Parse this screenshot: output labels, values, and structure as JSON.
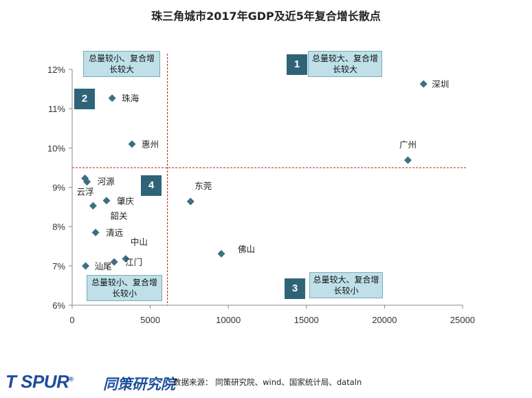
{
  "chart_data": {
    "type": "scatter",
    "title": "珠三角城市2017年GDP及近5年复合增长散点",
    "xlim": [
      0,
      25000
    ],
    "ylim": [
      0.06,
      0.12
    ],
    "xticks": [
      "0",
      "5000",
      "10000",
      "15000",
      "20000",
      "25000"
    ],
    "xtick_values": [
      0,
      5000,
      10000,
      15000,
      20000,
      25000
    ],
    "yticks": [
      "6%",
      "7%",
      "8%",
      "9%",
      "10%",
      "11%",
      "12%"
    ],
    "ytick_values": [
      0.06,
      0.07,
      0.08,
      0.09,
      0.1,
      0.11,
      0.12
    ],
    "marker_color": "#3f6f80",
    "points": [
      {
        "label": "深圳",
        "x": 22500,
        "y": 0.1163
      },
      {
        "label": "广州",
        "x": 21500,
        "y": 0.0969
      },
      {
        "label": "珠海",
        "x": 2560,
        "y": 0.1127
      },
      {
        "label": "惠州",
        "x": 3830,
        "y": 0.101
      },
      {
        "label": "东莞",
        "x": 7580,
        "y": 0.0864
      },
      {
        "label": "佛山",
        "x": 9550,
        "y": 0.0731
      },
      {
        "label": "河源",
        "x": 950,
        "y": 0.0914
      },
      {
        "label": "云浮",
        "x": 820,
        "y": 0.0923
      },
      {
        "label": "肇庆",
        "x": 2200,
        "y": 0.0866
      },
      {
        "label": "韶关",
        "x": 1340,
        "y": 0.0853
      },
      {
        "label": "清远",
        "x": 1500,
        "y": 0.0785
      },
      {
        "label": "中山",
        "x": 3430,
        "y": 0.0718
      },
      {
        "label": "江门",
        "x": 2690,
        "y": 0.071
      },
      {
        "label": "汕尾",
        "x": 860,
        "y": 0.07
      }
    ],
    "divider_x": 6100,
    "divider_y": 0.095,
    "divider_color": "#c0392b",
    "quadrants": [
      {
        "badge": "1",
        "text": "总量较大、复合增长较大"
      },
      {
        "badge": "2",
        "text": "总量较小、复合增长较大"
      },
      {
        "badge": "3",
        "text": "总量较大、复合增长较小"
      },
      {
        "badge": "4",
        "text": "总量较小、复合增长较小"
      }
    ],
    "quadrant_label_color": "#bfe0e8",
    "badge_color": "#2f6478"
  },
  "footer": {
    "logo_en": "T SPUR",
    "logo_reg": "®",
    "logo_cn": "同策研究院",
    "source": "数据来源：  同策研究院、wind、国家统计局、dataln"
  }
}
